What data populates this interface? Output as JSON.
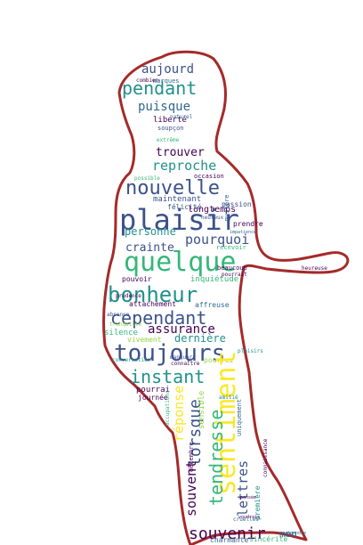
{
  "outline_color": "#a52a2a",
  "palette": {
    "dark_purple": "#440154",
    "indigo": "#3b528b",
    "blue": "#31688e",
    "teal": "#21918c",
    "green": "#35b779",
    "lime": "#90d743",
    "yellow": "#fde725"
  },
  "words": [
    {
      "text": "aujourd",
      "color": "#3b528b"
    },
    {
      "text": "pendant",
      "color": "#21918c"
    },
    {
      "text": "puisque",
      "color": "#31688e"
    },
    {
      "text": "liberté",
      "color": "#440154"
    },
    {
      "text": "soupçon",
      "color": "#3b528b"
    },
    {
      "text": "extrême",
      "color": "#35b779"
    },
    {
      "text": "trouver",
      "color": "#440154"
    },
    {
      "text": "reproche",
      "color": "#21918c"
    },
    {
      "text": "nouvelle",
      "color": "#3b528b"
    },
    {
      "text": "maintenant",
      "color": "#3b528b"
    },
    {
      "text": "longtemps",
      "color": "#440154"
    },
    {
      "text": "mystère",
      "color": "#31688e"
    },
    {
      "text": "passion",
      "color": "#3b528b"
    },
    {
      "text": "plaisir",
      "color": "#3b528b"
    },
    {
      "text": "personne",
      "color": "#21918c"
    },
    {
      "text": "pourquoi",
      "color": "#3b528b"
    },
    {
      "text": "prendre",
      "color": "#440154"
    },
    {
      "text": "crainte",
      "color": "#3b528b"
    },
    {
      "text": "recevoir",
      "color": "#35b779"
    },
    {
      "text": "quelque",
      "color": "#35b779"
    },
    {
      "text": "beaucoup",
      "color": "#440154"
    },
    {
      "text": "pouvoir",
      "color": "#440154"
    },
    {
      "text": "inquiétude",
      "color": "#35b779"
    },
    {
      "text": "bonheur",
      "color": "#21918c"
    },
    {
      "text": "attachement",
      "color": "#440154"
    },
    {
      "text": "affreuse",
      "color": "#31688e"
    },
    {
      "text": "cependant",
      "color": "#3b528b"
    },
    {
      "text": "assurance",
      "color": "#440154"
    },
    {
      "text": "silence",
      "color": "#35b779"
    },
    {
      "text": "dernière",
      "color": "#21918c"
    },
    {
      "text": "vivement",
      "color": "#90d743"
    },
    {
      "text": "toujours",
      "color": "#3b528b"
    },
    {
      "text": "pourrez",
      "color": "#90d743"
    },
    {
      "text": "instant",
      "color": "#21918c"
    },
    {
      "text": "sentiment",
      "color": "#fde725"
    },
    {
      "text": "pourrai",
      "color": "#440154"
    },
    {
      "text": "journée",
      "color": "#440154"
    },
    {
      "text": "réponse",
      "color": "#fde725"
    },
    {
      "text": "lorsque",
      "color": "#3b528b"
    },
    {
      "text": "tendresse",
      "color": "#35b779"
    },
    {
      "text": "sensible",
      "color": "#90d743"
    },
    {
      "text": "uniquement",
      "color": "#31688e"
    },
    {
      "text": "décembre",
      "color": "#440154"
    },
    {
      "text": "souvent",
      "color": "#440154"
    },
    {
      "text": "lettres",
      "color": "#3b528b"
    },
    {
      "text": "première",
      "color": "#21918c"
    },
    {
      "text": "souvenir",
      "color": "#440154"
    },
    {
      "text": "charmante",
      "color": "#31688e"
    },
    {
      "text": "sincérité",
      "color": "#35b779"
    },
    {
      "text": "mon",
      "color": "#31688e"
    },
    {
      "text": "marques",
      "color": "#31688e"
    },
    {
      "text": "combien",
      "color": "#440154"
    },
    {
      "text": "naturel",
      "color": "#31688e"
    },
    {
      "text": "occasion",
      "color": "#440154"
    },
    {
      "text": "félicité",
      "color": "#3b528b"
    },
    {
      "text": "heureux",
      "color": "#3b528b"
    },
    {
      "text": "possible",
      "color": "#35b779"
    },
    {
      "text": "impatience",
      "color": "#31688e"
    },
    {
      "text": "heureuse",
      "color": "#440154"
    },
    {
      "text": "pourrait",
      "color": "#440154"
    },
    {
      "text": "prudence",
      "color": "#440154"
    },
    {
      "text": "absence",
      "color": "#3b528b"
    },
    {
      "text": "conversation",
      "color": "#21918c"
    },
    {
      "text": "connaître",
      "color": "#440154"
    },
    {
      "text": "manquer",
      "color": "#3b528b"
    },
    {
      "text": "répondre",
      "color": "#31688e"
    },
    {
      "text": "voudrais",
      "color": "#440154"
    },
    {
      "text": "cruelles",
      "color": "#31688e"
    },
    {
      "text": "pensée",
      "color": "#440154"
    },
    {
      "text": "connaissance",
      "color": "#440154"
    },
    {
      "text": "occupations",
      "color": "#35b779"
    },
    {
      "text": "amitié",
      "color": "#21918c"
    },
    {
      "text": "tranquille",
      "color": "#90d743"
    },
    {
      "text": "plaisirs",
      "color": "#21918c"
    }
  ]
}
